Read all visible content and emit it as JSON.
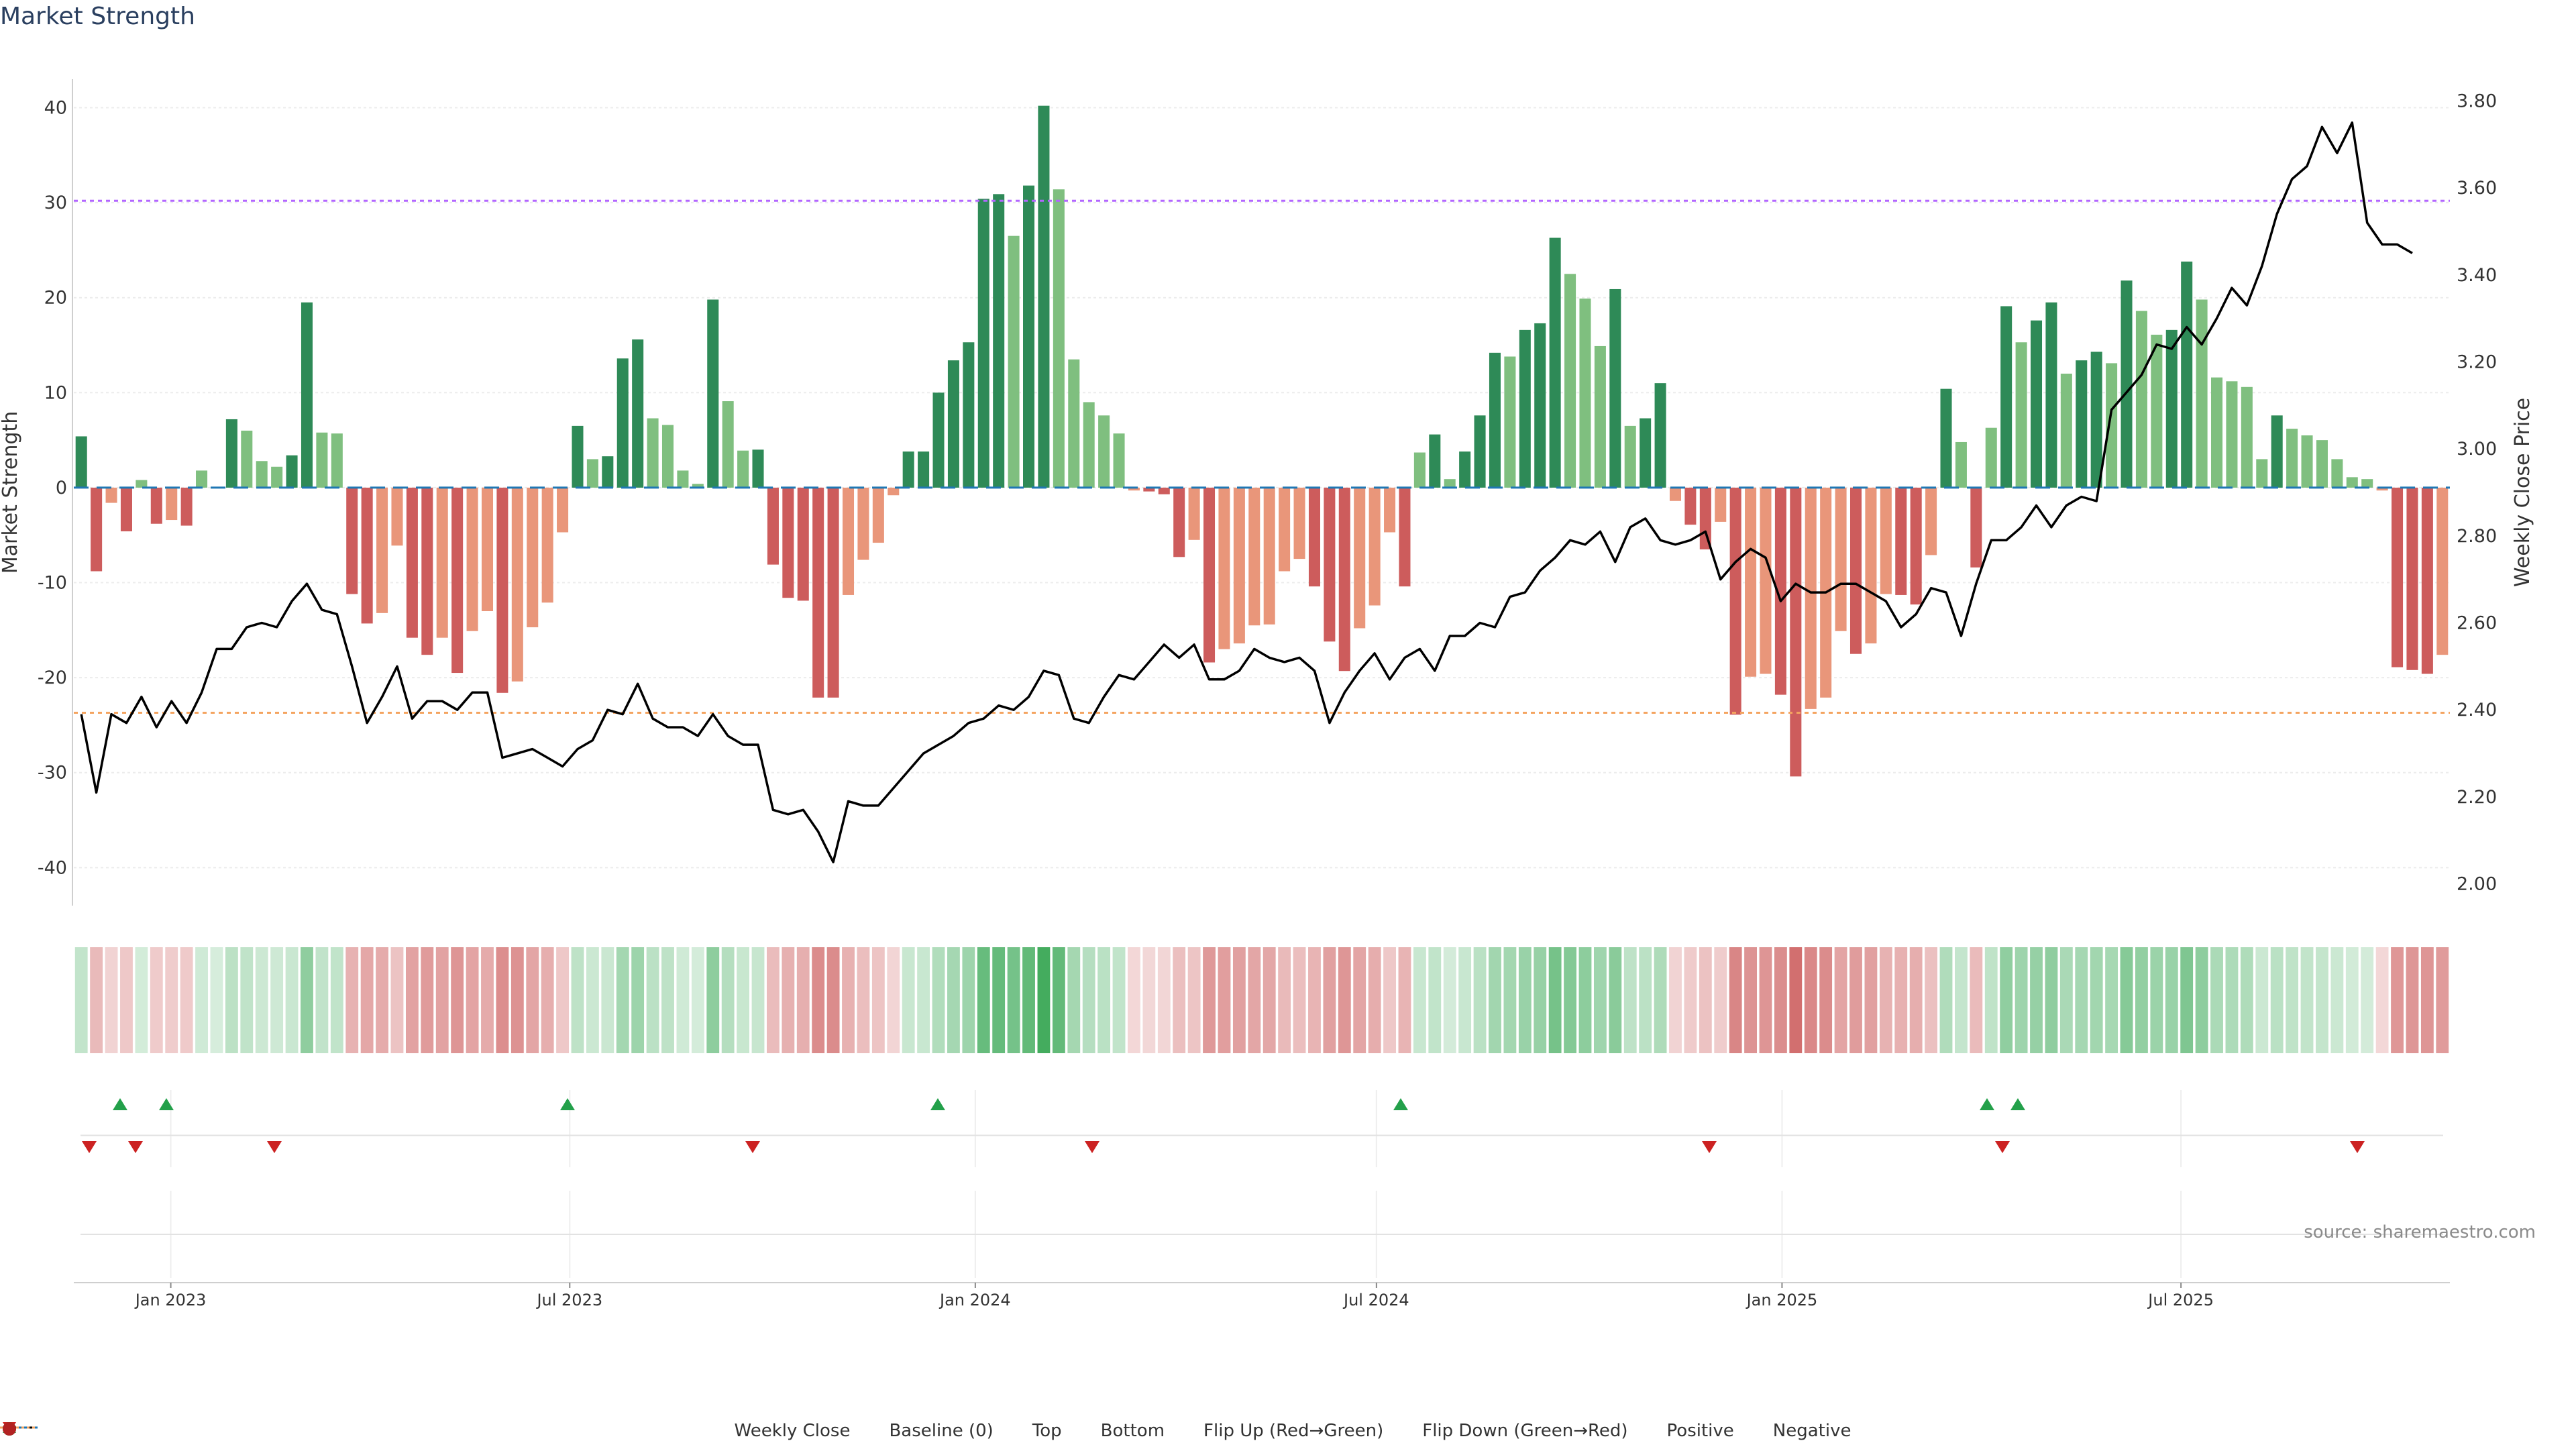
{
  "title": "Market Strength",
  "source": "source: sharemaestro.com",
  "colors": {
    "pos_strong": "#2e8a57",
    "pos_weak": "#7fbf7f",
    "neg_strong": "#cd5c5c",
    "neg_weak": "#e9967a",
    "close_line": "#000000",
    "baseline": "#1f77b4",
    "top": "#b266ff",
    "bottom": "#f4a460",
    "flip_up": "#23a04a",
    "flip_down": "#cc2222",
    "positive": "#1f8a1f",
    "negative": "#b22222"
  },
  "chart_data": {
    "type": "bar",
    "title": "Market Strength",
    "ylabel": "Market Strength",
    "y2label": "Weekly Close Price",
    "ylim": [
      -44,
      43
    ],
    "y2lim": [
      1.95,
      3.85
    ],
    "yticks": [
      40,
      30,
      20,
      10,
      0,
      -10,
      -20,
      -30,
      -40
    ],
    "y2ticks": [
      "3.80",
      "3.60",
      "3.40",
      "3.20",
      "3.00",
      "2.80",
      "2.60",
      "2.40",
      "2.20",
      "2.00"
    ],
    "x_start": "2022-11-18",
    "x_end": "2025-10-31",
    "xticks": [
      {
        "label": "Jan 2023",
        "date": "2023-01-01"
      },
      {
        "label": "Jul 2023",
        "date": "2023-07-01"
      },
      {
        "label": "Jan 2024",
        "date": "2024-01-01"
      },
      {
        "label": "Jul 2024",
        "date": "2024-07-01"
      },
      {
        "label": "Jan 2025",
        "date": "2025-01-01"
      },
      {
        "label": "Jul 2025",
        "date": "2025-07-01"
      }
    ],
    "top_level": 30.2,
    "bottom_level": -23.7,
    "strength": [
      5.4,
      -8.8,
      -1.6,
      -4.6,
      0.8,
      -3.8,
      -3.4,
      -4.0,
      1.8,
      0,
      7.2,
      6.0,
      2.8,
      2.2,
      3.4,
      19.5,
      5.8,
      5.7,
      -11.2,
      -14.3,
      -13.2,
      -6.1,
      -15.8,
      -17.6,
      -15.8,
      -19.5,
      -15.1,
      -13.0,
      -21.6,
      -20.4,
      -14.7,
      -12.1,
      -4.7,
      6.5,
      3.0,
      3.3,
      13.6,
      15.6,
      7.3,
      6.6,
      1.8,
      0.4,
      19.8,
      9.1,
      3.9,
      4.0,
      -8.1,
      -11.6,
      -11.9,
      -22.1,
      -22.1,
      -11.3,
      -7.6,
      -5.8,
      -0.8,
      3.8,
      3.8,
      10.0,
      13.4,
      15.3,
      30.4,
      30.9,
      26.5,
      31.8,
      40.2,
      31.4,
      13.5,
      9.0,
      7.6,
      5.7,
      -0.3,
      -0.4,
      -0.7,
      -7.3,
      -5.5,
      -18.4,
      -17.0,
      -16.4,
      -14.5,
      -14.4,
      -8.8,
      -7.5,
      -10.4,
      -16.2,
      -19.3,
      -14.8,
      -12.4,
      -4.7,
      -10.4,
      3.7,
      5.6,
      0.9,
      3.8,
      7.6,
      14.2,
      13.8,
      16.6,
      17.3,
      26.3,
      22.5,
      19.9,
      14.9,
      20.9,
      6.5,
      7.3,
      11.0,
      -1.4,
      -3.9,
      -6.5,
      -3.6,
      -23.9,
      -19.9,
      -19.6,
      -21.8,
      -30.4,
      -23.3,
      -22.1,
      -15.1,
      -17.5,
      -16.4,
      -11.2,
      -11.3,
      -12.3,
      -7.1,
      10.4,
      4.8,
      -8.4,
      6.3,
      19.1,
      15.3,
      17.6,
      19.5,
      12.0,
      13.4,
      14.3,
      13.1,
      21.8,
      18.6,
      16.1,
      16.6,
      23.8,
      19.8,
      11.6,
      11.2,
      10.6,
      3.0,
      7.6,
      6.2,
      5.5,
      5.0,
      3.0,
      1.1,
      0.9,
      -0.3,
      -18.9,
      -19.2,
      -19.6,
      -17.6
    ],
    "weekly_close": [
      2.39,
      2.21,
      2.39,
      2.37,
      2.43,
      2.36,
      2.42,
      2.37,
      2.44,
      2.54,
      2.54,
      2.59,
      2.6,
      2.59,
      2.65,
      2.69,
      2.63,
      2.62,
      2.5,
      2.37,
      2.43,
      2.5,
      2.38,
      2.42,
      2.42,
      2.4,
      2.44,
      2.44,
      2.29,
      2.3,
      2.31,
      2.29,
      2.27,
      2.31,
      2.33,
      2.4,
      2.39,
      2.46,
      2.38,
      2.36,
      2.36,
      2.34,
      2.39,
      2.34,
      2.32,
      2.32,
      2.17,
      2.16,
      2.17,
      2.12,
      2.05,
      2.19,
      2.18,
      2.18,
      2.22,
      2.26,
      2.3,
      2.32,
      2.34,
      2.37,
      2.38,
      2.41,
      2.4,
      2.43,
      2.49,
      2.48,
      2.38,
      2.37,
      2.43,
      2.48,
      2.47,
      2.51,
      2.55,
      2.52,
      2.55,
      2.47,
      2.47,
      2.49,
      2.54,
      2.52,
      2.51,
      2.52,
      2.49,
      2.37,
      2.44,
      2.49,
      2.53,
      2.47,
      2.52,
      2.54,
      2.49,
      2.57,
      2.57,
      2.6,
      2.59,
      2.66,
      2.67,
      2.72,
      2.75,
      2.79,
      2.78,
      2.81,
      2.74,
      2.82,
      2.84,
      2.79,
      2.78,
      2.79,
      2.81,
      2.7,
      2.74,
      2.77,
      2.75,
      2.65,
      2.69,
      2.67,
      2.67,
      2.69,
      2.69,
      2.67,
      2.65,
      2.59,
      2.62,
      2.68,
      2.67,
      2.57,
      2.69,
      2.79,
      2.79,
      2.82,
      2.87,
      2.82,
      2.87,
      2.89,
      2.88,
      3.09,
      3.13,
      3.17,
      3.24,
      3.23,
      3.28,
      3.24,
      3.3,
      3.37,
      3.33,
      3.42,
      3.54,
      3.62,
      3.65,
      3.74,
      3.68,
      3.75,
      3.52,
      3.47,
      3.47,
      3.45
    ],
    "flip_up_dates": [
      "2022-12-09",
      "2022-12-30",
      "2023-06-30",
      "2023-12-15",
      "2024-07-12",
      "2025-04-04",
      "2025-04-18"
    ],
    "flip_down_dates": [
      "2022-11-25",
      "2022-12-16",
      "2023-02-17",
      "2023-09-22",
      "2024-02-23",
      "2024-11-29",
      "2025-04-11",
      "2025-09-19"
    ]
  },
  "legend": [
    {
      "label": "Weekly Close",
      "kind": "line"
    },
    {
      "label": "Baseline (0)",
      "kind": "dash"
    },
    {
      "label": "Top",
      "kind": "dot-top"
    },
    {
      "label": "Bottom",
      "kind": "dot-bottom"
    },
    {
      "label": "Flip Up (Red→Green)",
      "kind": "tri-up"
    },
    {
      "label": "Flip Down (Green→Red)",
      "kind": "tri-down"
    },
    {
      "label": "Positive",
      "kind": "circle-pos"
    },
    {
      "label": "Negative",
      "kind": "circle-neg"
    }
  ]
}
